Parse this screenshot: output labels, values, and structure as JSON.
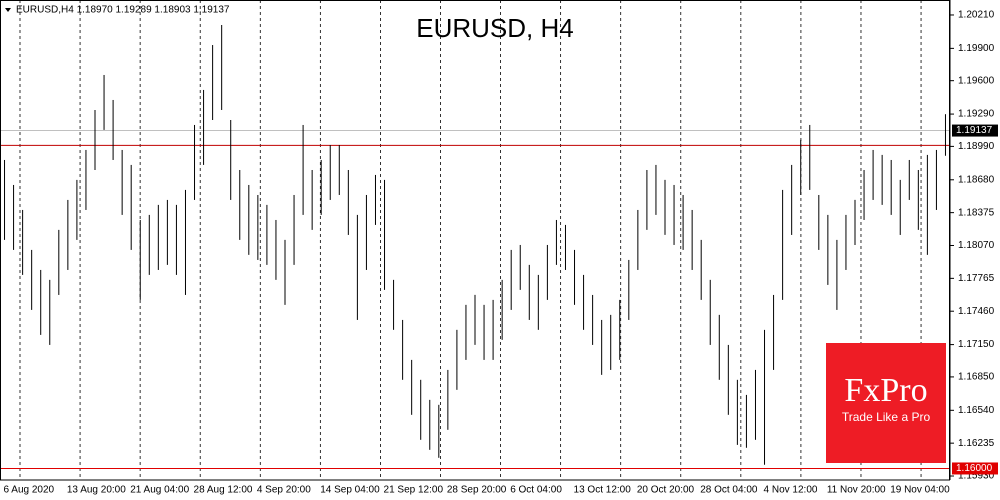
{
  "chart_data": {
    "type": "range_bar",
    "title": "EURUSD, H4",
    "info": "EURUSD,H4  1.18970 1.19289 1.18903 1.19137",
    "color": "#000000",
    "ylim": [
      1.15893,
      1.20349
    ],
    "yticks": [
      {
        "value": 1.2021,
        "label": "1.20210"
      },
      {
        "value": 1.199,
        "label": "1.19900"
      },
      {
        "value": 1.196,
        "label": "1.19600"
      },
      {
        "value": 1.1929,
        "label": "1.19290"
      },
      {
        "value": 1.1899,
        "label": "1.18990"
      },
      {
        "value": 1.1868,
        "label": "1.18680"
      },
      {
        "value": 1.18375,
        "label": "1.18375"
      },
      {
        "value": 1.1807,
        "label": "1.18070"
      },
      {
        "value": 1.17765,
        "label": "1.17765"
      },
      {
        "value": 1.1746,
        "label": "1.17460"
      },
      {
        "value": 1.1715,
        "label": "1.17150"
      },
      {
        "value": 1.1685,
        "label": "1.16850"
      },
      {
        "value": 1.1654,
        "label": "1.16540"
      },
      {
        "value": 1.16235,
        "label": "1.16235"
      },
      {
        "value": 1.1593,
        "label": "1.15930"
      }
    ],
    "levels": [
      {
        "value": 1.19,
        "color": "#c00000"
      },
      {
        "value": 1.19137,
        "color": "#c0c0c0",
        "label": "1.19137"
      },
      {
        "value": 1.16,
        "color": "#e00000",
        "label": "1.16000"
      }
    ],
    "categories": [
      "6 Aug 2020",
      null,
      null,
      null,
      null,
      null,
      null,
      "13 Aug 20:00",
      null,
      null,
      null,
      null,
      null,
      null,
      "21 Aug 04:00",
      null,
      null,
      null,
      null,
      null,
      null,
      "28 Aug 12:00",
      null,
      null,
      null,
      null,
      null,
      null,
      "4 Sep 20:00",
      null,
      null,
      null,
      null,
      null,
      null,
      "14 Sep 04:00",
      null,
      null,
      null,
      null,
      null,
      null,
      "21 Sep 12:00",
      null,
      null,
      null,
      null,
      null,
      null,
      "28 Sep 20:00",
      null,
      null,
      null,
      null,
      null,
      null,
      "6 Oct 04:00",
      null,
      null,
      null,
      null,
      null,
      null,
      "13 Oct 12:00",
      null,
      null,
      null,
      null,
      null,
      null,
      "20 Oct 20:00",
      null,
      null,
      null,
      null,
      null,
      null,
      "28 Oct 04:00",
      null,
      null,
      null,
      null,
      null,
      null,
      "4 Nov 12:00",
      null,
      null,
      null,
      null,
      null,
      null,
      "11 Nov 20:00",
      null,
      null,
      null,
      null,
      null,
      null,
      "19 Nov 04:00",
      null,
      null,
      null,
      null,
      null,
      null
    ],
    "highs": [
      1.18864,
      1.18632,
      1.184,
      1.18029,
      1.17843,
      1.17751,
      1.18215,
      1.18493,
      1.18679,
      1.18957,
      1.19328,
      1.19653,
      1.19421,
      1.18957,
      1.18818,
      1.18307,
      1.18354,
      1.18447,
      1.18493,
      1.18447,
      1.18586,
      1.19189,
      1.19514,
      1.19931,
      1.20117,
      1.19235,
      1.18771,
      1.18632,
      1.18539,
      1.18447,
      1.18307,
      1.18122,
      1.18539,
      1.19189,
      1.18771,
      1.18864,
      1.19003,
      1.19003,
      1.18771,
      1.18354,
      1.18539,
      1.18725,
      1.18679,
      1.17751,
      1.17379,
      1.17008,
      1.16823,
      1.16637,
      1.16591,
      1.16915,
      1.17287,
      1.17519,
      1.17611,
      1.17519,
      1.17565,
      1.17751,
      1.18029,
      1.18075,
      1.1789,
      1.17797,
      1.18075,
      1.18307,
      1.18261,
      1.18029,
      1.17797,
      1.17611,
      1.17379,
      1.17426,
      1.17565,
      1.17936,
      1.184,
      1.18771,
      1.18818,
      1.18679,
      1.18632,
      1.18539,
      1.184,
      1.18122,
      1.17751,
      1.17426,
      1.17147,
      1.16823,
      1.16683,
      1.16915,
      1.17287,
      1.17611,
      1.18586,
      1.18818,
      1.1905,
      1.19189,
      1.18539,
      1.18354,
      1.18122,
      1.18354,
      1.18493,
      1.18771,
      1.18957,
      1.18911,
      1.18864,
      1.18679,
      1.18864,
      1.18771,
      1.18911,
      1.18957,
      1.19289
    ],
    "lows": [
      1.18122,
      1.18029,
      1.17797,
      1.17472,
      1.1724,
      1.17147,
      1.17611,
      1.17843,
      1.18122,
      1.184,
      1.18771,
      1.19143,
      1.18864,
      1.18354,
      1.18029,
      1.17565,
      1.17797,
      1.17843,
      1.1789,
      1.17797,
      1.17611,
      1.18493,
      1.18818,
      1.19235,
      1.19328,
      1.18493,
      1.18122,
      1.17983,
      1.17936,
      1.1789,
      1.17751,
      1.17519,
      1.1789,
      1.18354,
      1.18215,
      1.18354,
      1.18493,
      1.18539,
      1.18168,
      1.17379,
      1.17843,
      1.18261,
      1.17658,
      1.17287,
      1.16823,
      1.16498,
      1.16266,
      1.16173,
      1.16099,
      1.16359,
      1.1673,
      1.17008,
      1.17147,
      1.17008,
      1.17008,
      1.17194,
      1.17472,
      1.17658,
      1.17379,
      1.17287,
      1.17565,
      1.1789,
      1.17843,
      1.17519,
      1.17287,
      1.17147,
      1.16869,
      1.16915,
      1.17008,
      1.17379,
      1.17843,
      1.18215,
      1.18354,
      1.18168,
      1.18075,
      1.18029,
      1.17843,
      1.17565,
      1.17147,
      1.16823,
      1.16498,
      1.16219,
      1.16192,
      1.16266,
      1.16034,
      1.16915,
      1.17565,
      1.18168,
      1.18539,
      1.18586,
      1.18029,
      1.17704,
      1.17472,
      1.17843,
      1.18075,
      1.18307,
      1.18493,
      1.18447,
      1.18354,
      1.18168,
      1.18493,
      1.18215,
      1.17983,
      1.184,
      1.18903
    ]
  },
  "logo": {
    "name": "FxPro",
    "tagline": "Trade Like a Pro"
  }
}
